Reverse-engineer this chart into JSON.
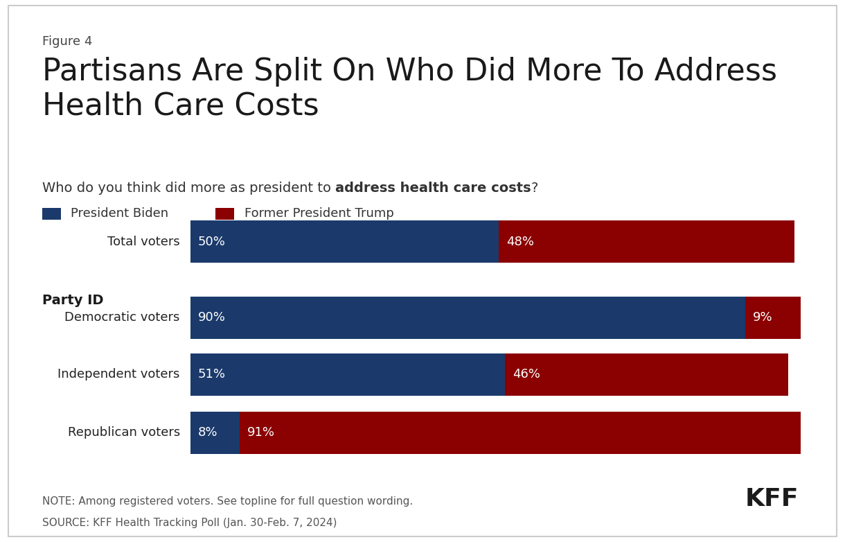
{
  "figure_label": "Figure 4",
  "title": "Partisans Are Split On Who Did More To Address\nHealth Care Costs",
  "subtitle_plain": "Who do you think did more as president to ",
  "subtitle_bold": "address health care costs",
  "subtitle_end": "?",
  "legend_biden": "President Biden",
  "legend_trump": "Former President Trump",
  "biden_values": [
    50,
    90,
    51,
    8
  ],
  "trump_values": [
    48,
    9,
    46,
    91
  ],
  "bar_labels": [
    "Total voters",
    "Democratic voters",
    "Independent voters",
    "Republican voters"
  ],
  "party_id_header": "Party ID",
  "color_biden": "#1b3a6b",
  "color_trump": "#8b0000",
  "background_color": "#ffffff",
  "note_line1": "NOTE: Among registered voters. See topline for full question wording.",
  "note_line2": "SOURCE: KFF Health Tracking Poll (Jan. 30-Feb. 7, 2024)",
  "kff_label": "KFF",
  "title_fontsize": 32,
  "figure_label_fontsize": 13,
  "subtitle_fontsize": 14,
  "bar_label_fontsize": 13,
  "value_fontsize": 13,
  "note_fontsize": 11,
  "kff_fontsize": 26,
  "party_id_fontsize": 14
}
